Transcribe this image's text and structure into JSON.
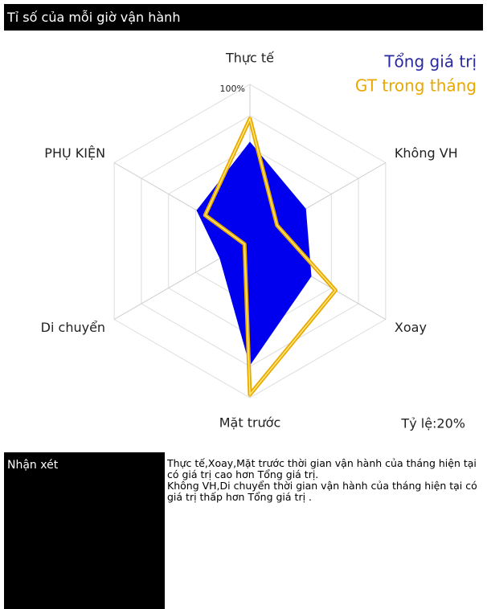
{
  "header": {
    "title": "Tỉ số của mỗi giờ vận hành"
  },
  "chart_data": {
    "type": "radar",
    "categories": [
      "Thực tế",
      "Không VH",
      "Xoay",
      "Mặt trước",
      "Di chuyển",
      "PHỤ KIỆN"
    ],
    "series": [
      {
        "name": "Tổng giá trị",
        "color": "#0000ee",
        "values": [
          63,
          41,
          45,
          79,
          22,
          39
        ]
      },
      {
        "name": "GT trong tháng",
        "color": "#e8a800",
        "values": [
          78,
          20,
          63,
          98,
          4,
          33
        ]
      }
    ],
    "ylim": [
      0,
      100
    ],
    "yticks": [
      20,
      40,
      60,
      80,
      {
        "value": 100,
        "label": "100%"
      }
    ],
    "grid": true,
    "scale_note": "Tỷ lệ:20%",
    "legend": "top-right"
  },
  "comments": {
    "label": "Nhận xét",
    "paragraphs": [
      "Thực tế,Xoay,Mặt trước thời gian vận hành của tháng hiện tại có giá trị cao hơn Tổng giá trị.",
      "Không VH,Di chuyển thời gian vận hành của tháng hiện tại có giá trị thấp hơn Tổng giá trị ."
    ]
  }
}
